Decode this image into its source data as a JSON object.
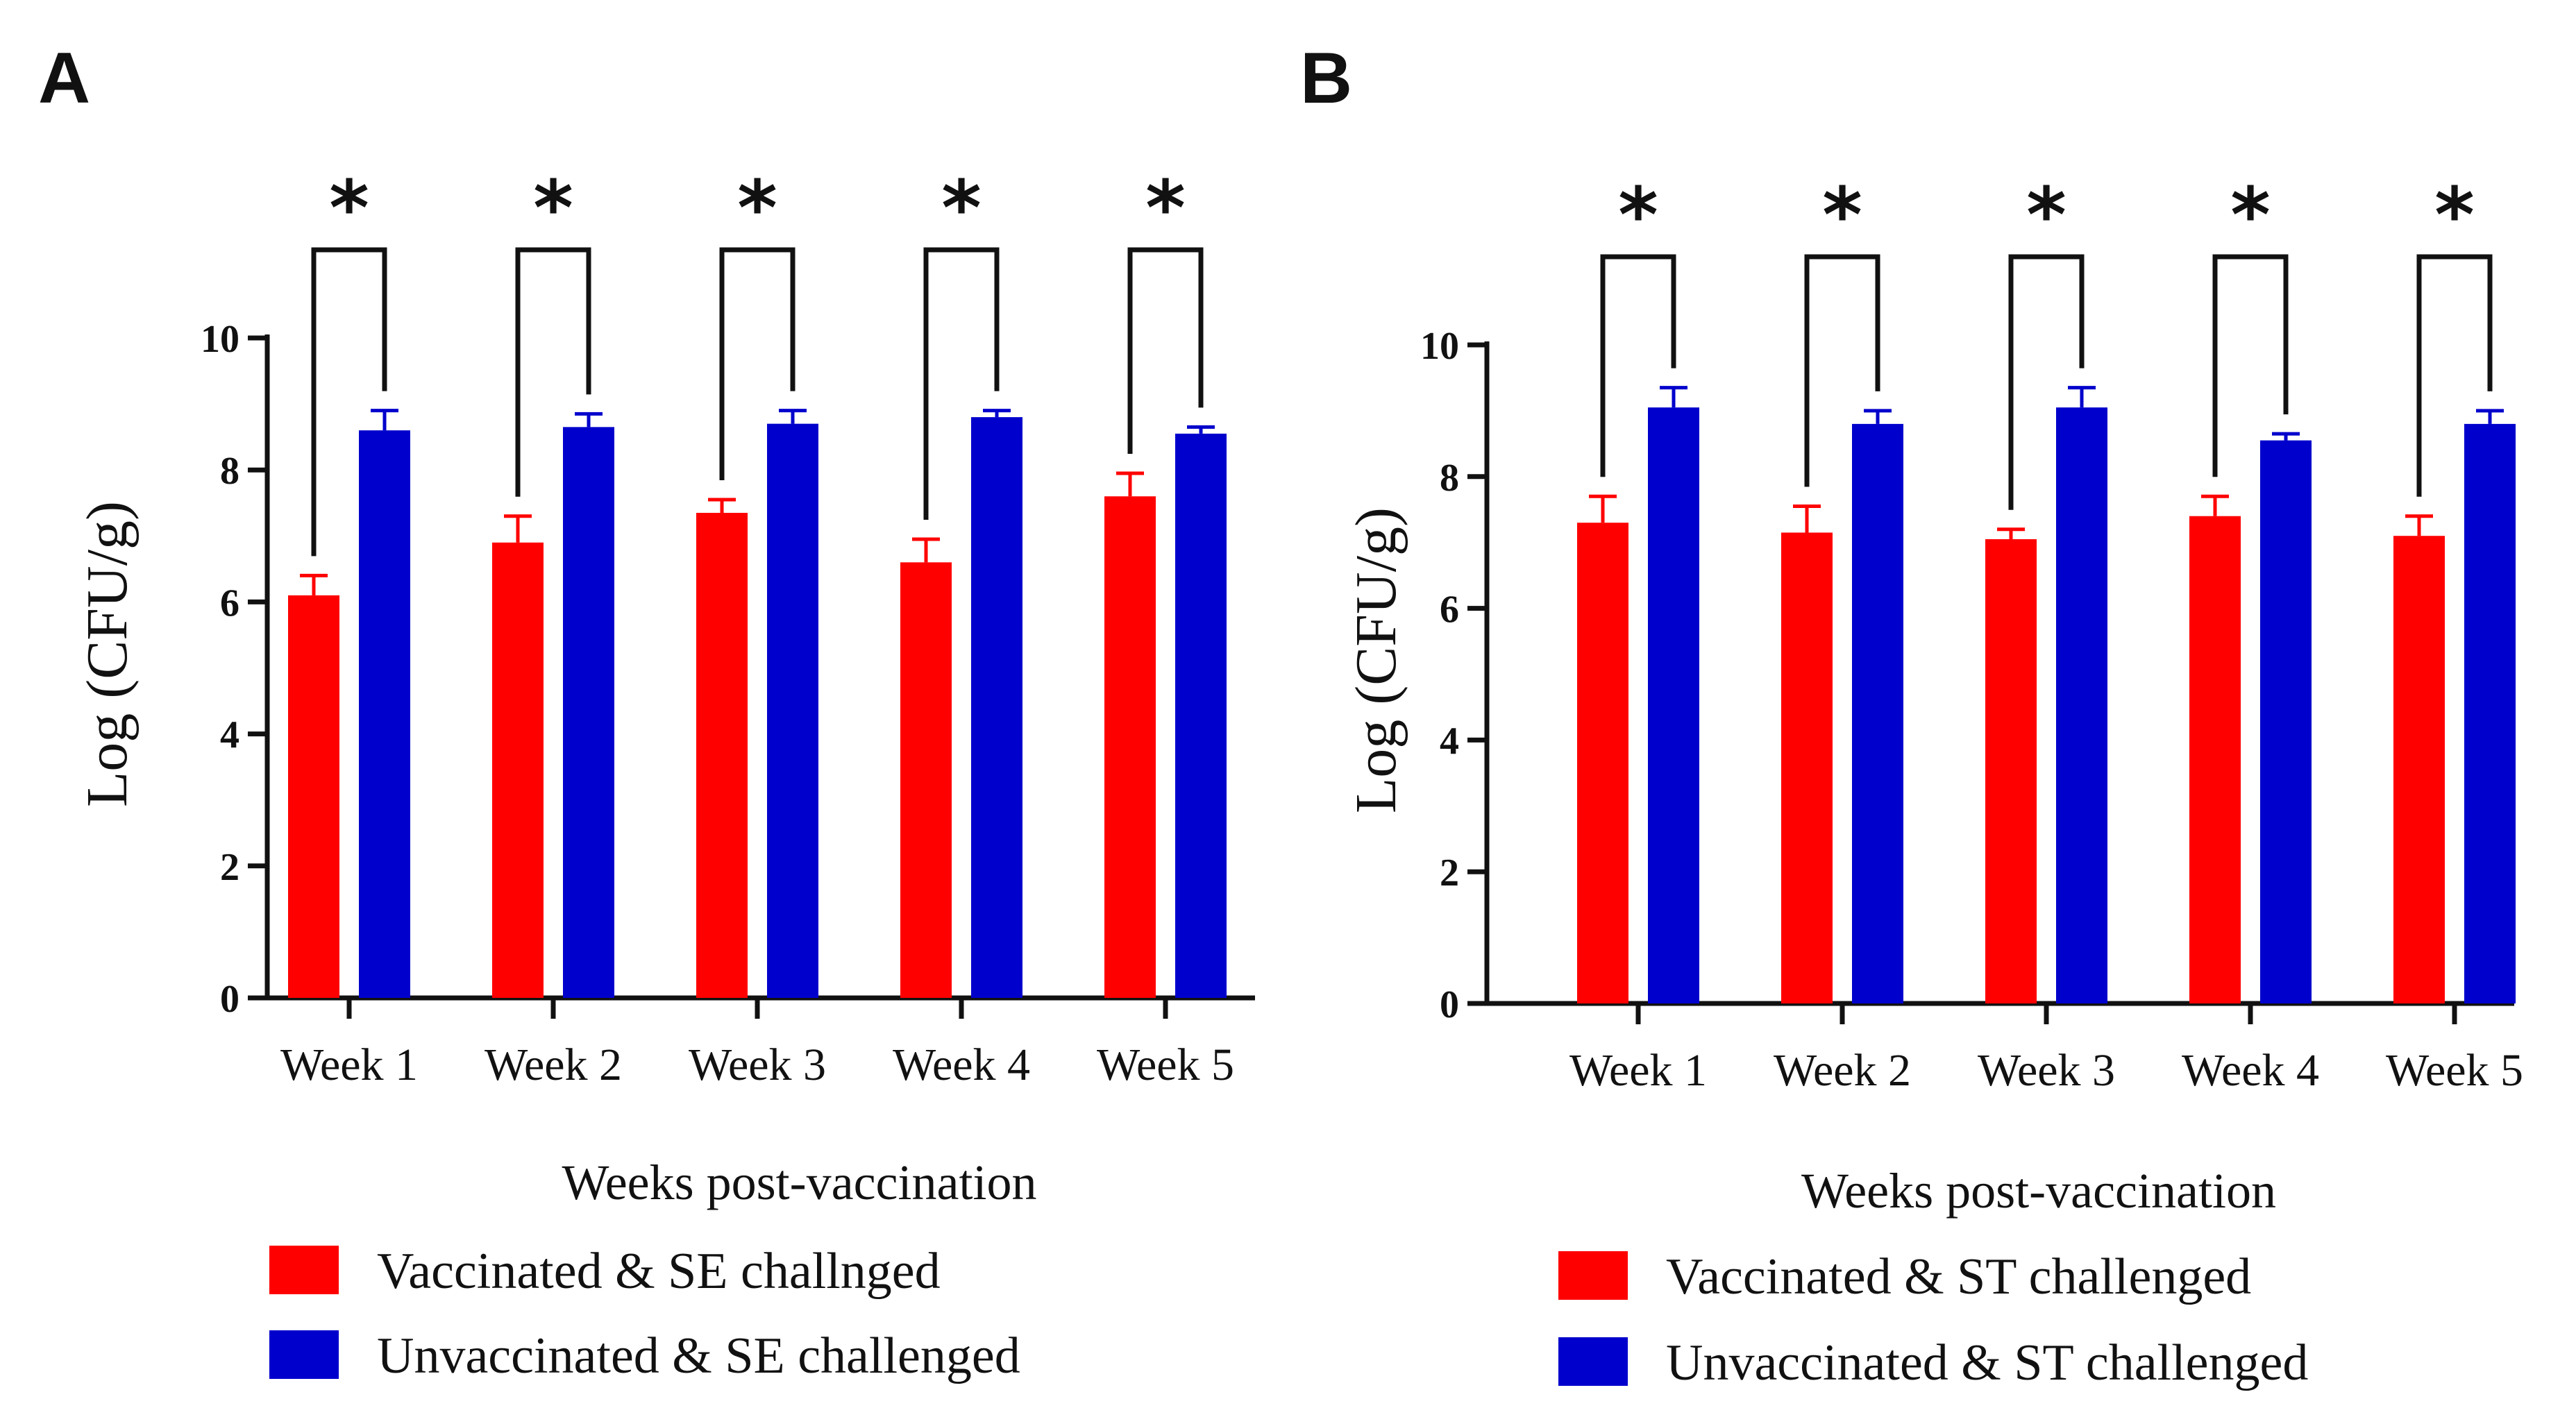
{
  "chart_data": [
    {
      "panel": "A",
      "type": "bar",
      "categories": [
        "Week 1",
        "Week 2",
        "Week 3",
        "Week 4",
        "Week 5"
      ],
      "series": [
        {
          "name": "Vaccinated & SE challnged",
          "color": "#ff0000",
          "values": [
            6.1,
            6.9,
            7.35,
            6.6,
            7.6
          ],
          "errors": [
            0.3,
            0.4,
            0.2,
            0.35,
            0.35
          ]
        },
        {
          "name": "Unvaccinated & SE challenged",
          "color": "#0000cc",
          "values": [
            8.6,
            8.65,
            8.7,
            8.8,
            8.55
          ],
          "errors": [
            0.3,
            0.2,
            0.2,
            0.1,
            0.1
          ]
        }
      ],
      "significance": [
        "*",
        "*",
        "*",
        "*",
        "*"
      ],
      "xlabel": "Weeks post-vaccination",
      "ylabel": "Log (CFU/g)",
      "yticks": [
        "0",
        "2",
        "4",
        "6",
        "8",
        "10"
      ],
      "ylim": [
        0,
        10
      ]
    },
    {
      "panel": "B",
      "type": "bar",
      "categories": [
        "Week 1",
        "Week 2",
        "Week 3",
        "Week 4",
        "Week 5"
      ],
      "series": [
        {
          "name": "Vaccinated & ST challenged",
          "color": "#ff0000",
          "values": [
            7.3,
            7.15,
            7.05,
            7.4,
            7.1
          ],
          "errors": [
            0.4,
            0.4,
            0.15,
            0.3,
            0.3
          ]
        },
        {
          "name": "Unvaccinated & ST challenged",
          "color": "#0000cc",
          "values": [
            9.05,
            8.8,
            9.05,
            8.55,
            8.8
          ],
          "errors": [
            0.3,
            0.2,
            0.3,
            0.1,
            0.2
          ]
        }
      ],
      "significance": [
        "*",
        "*",
        "*",
        "*",
        "*"
      ],
      "xlabel": "Weeks post-vaccination",
      "ylabel": "Log (CFU/g)",
      "yticks": [
        "0",
        "2",
        "4",
        "6",
        "8",
        "10"
      ],
      "ylim": [
        0,
        10
      ]
    }
  ]
}
